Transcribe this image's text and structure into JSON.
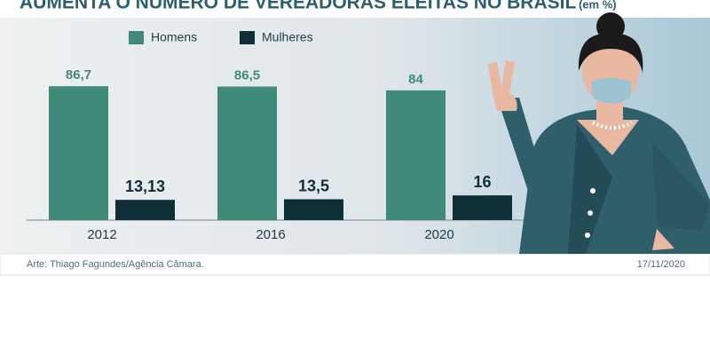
{
  "chart_data": {
    "type": "bar",
    "title": "AUMENTA O NÚMERO DE VEREADORAS ELEITAS NO BRASIL",
    "unit": "(em %)",
    "categories": [
      "2012",
      "2016",
      "2020"
    ],
    "series": [
      {
        "name": "Homens",
        "color": "#3f8a78",
        "values": [
          86.7,
          86.5,
          84
        ],
        "value_labels": [
          "86,7",
          "86,5",
          "84"
        ]
      },
      {
        "name": "Mulheres",
        "color": "#0f2f38",
        "values": [
          13.13,
          13.5,
          16
        ],
        "value_labels": [
          "13,13",
          "13,5",
          "16"
        ]
      }
    ],
    "ylim": [
      0,
      100
    ],
    "credit": "Arte: Thiago Fagundes/Agência Câmara.",
    "date": "17/11/2020"
  }
}
